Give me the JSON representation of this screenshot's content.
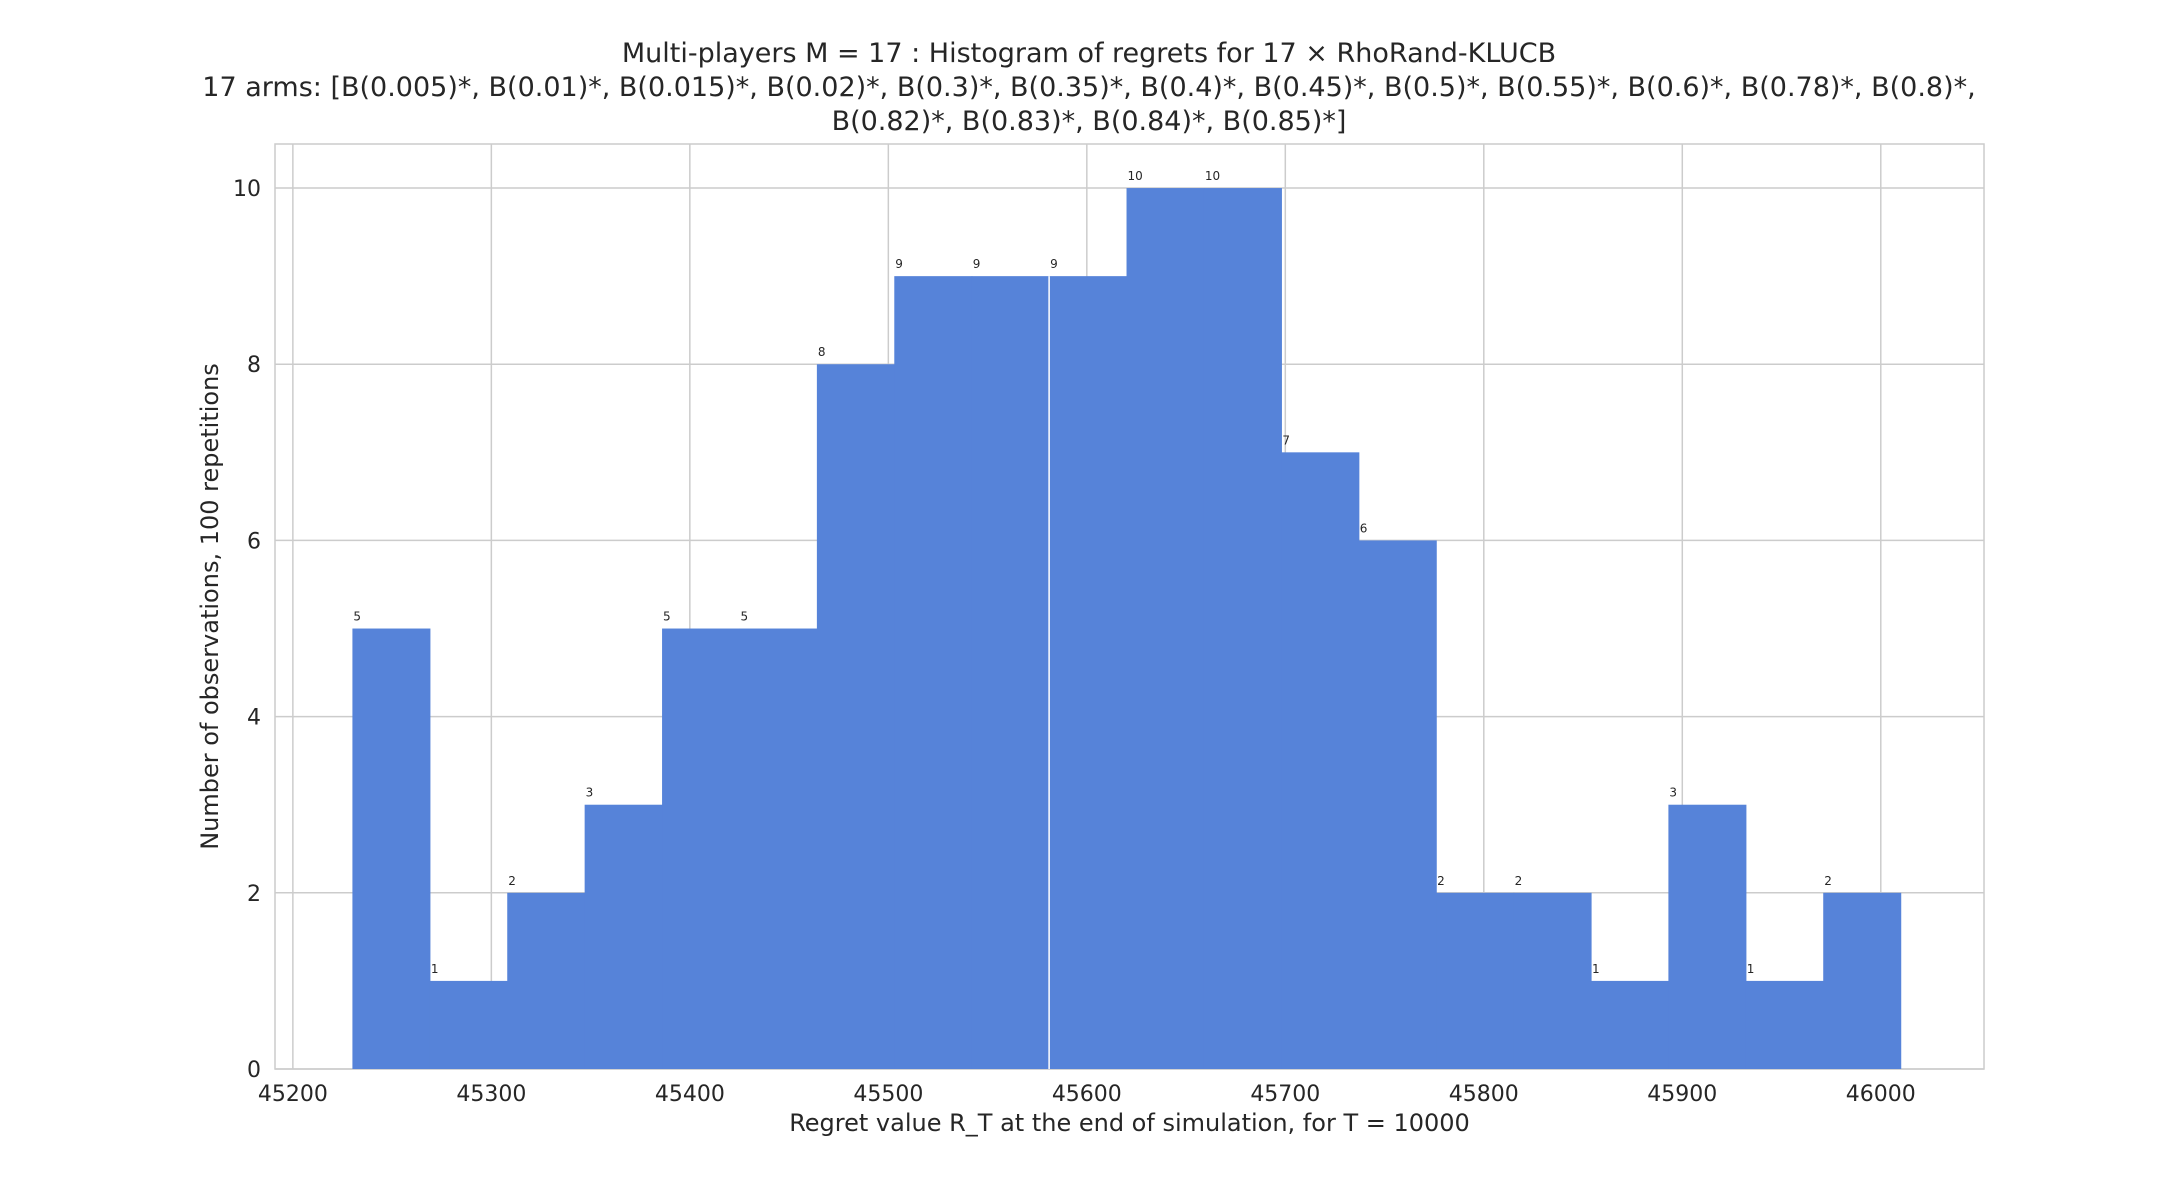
{
  "chart_data": {
    "type": "bar",
    "title_lines": [
      "Multi-players M = 17 : Histogram of regrets for 17 × RhoRand-KLUCB",
      "17 arms: [B(0.005)*, B(0.01)*, B(0.015)*, B(0.02)*, B(0.3)*, B(0.35)*, B(0.4)*, B(0.45)*, B(0.5)*, B(0.55)*, B(0.6)*, B(0.78)*, B(0.8)*,",
      "B(0.82)*, B(0.83)*, B(0.84)*, B(0.85)*]"
    ],
    "xlabel": "Regret value R_T at the end of simulation, for T = 10000",
    "ylabel": "Number of observations, 100 repetitions",
    "xlim": [
      45191,
      46052
    ],
    "ylim": [
      0,
      10.5
    ],
    "xticks": [
      45200,
      45300,
      45400,
      45500,
      45600,
      45700,
      45800,
      45900,
      46000
    ],
    "yticks": [
      0,
      2,
      4,
      6,
      8,
      10
    ],
    "grid": true,
    "bar_color": "#5683D9",
    "bins": [
      {
        "x0": 45230,
        "x1": 45269,
        "count": 5
      },
      {
        "x0": 45269,
        "x1": 45308,
        "count": 1
      },
      {
        "x0": 45308,
        "x1": 45347,
        "count": 2
      },
      {
        "x0": 45347,
        "x1": 45386,
        "count": 3
      },
      {
        "x0": 45386,
        "x1": 45425,
        "count": 5
      },
      {
        "x0": 45425,
        "x1": 45464,
        "count": 5
      },
      {
        "x0": 45464,
        "x1": 45503,
        "count": 8
      },
      {
        "x0": 45503,
        "x1": 45542,
        "count": 9
      },
      {
        "x0": 45542,
        "x1": 45581,
        "count": 9
      },
      {
        "x0": 45581,
        "x1": 45620,
        "count": 9
      },
      {
        "x0": 45620,
        "x1": 45659,
        "count": 10
      },
      {
        "x0": 45659,
        "x1": 45698,
        "count": 10
      },
      {
        "x0": 45698,
        "x1": 45737,
        "count": 7
      },
      {
        "x0": 45737,
        "x1": 45776,
        "count": 6
      },
      {
        "x0": 45776,
        "x1": 45815,
        "count": 2
      },
      {
        "x0": 45815,
        "x1": 45854,
        "count": 2
      },
      {
        "x0": 45854,
        "x1": 45893,
        "count": 1
      },
      {
        "x0": 45893,
        "x1": 45932,
        "count": 3
      },
      {
        "x0": 45932,
        "x1": 45971,
        "count": 1
      },
      {
        "x0": 45971,
        "x1": 46010,
        "count": 2
      }
    ]
  }
}
